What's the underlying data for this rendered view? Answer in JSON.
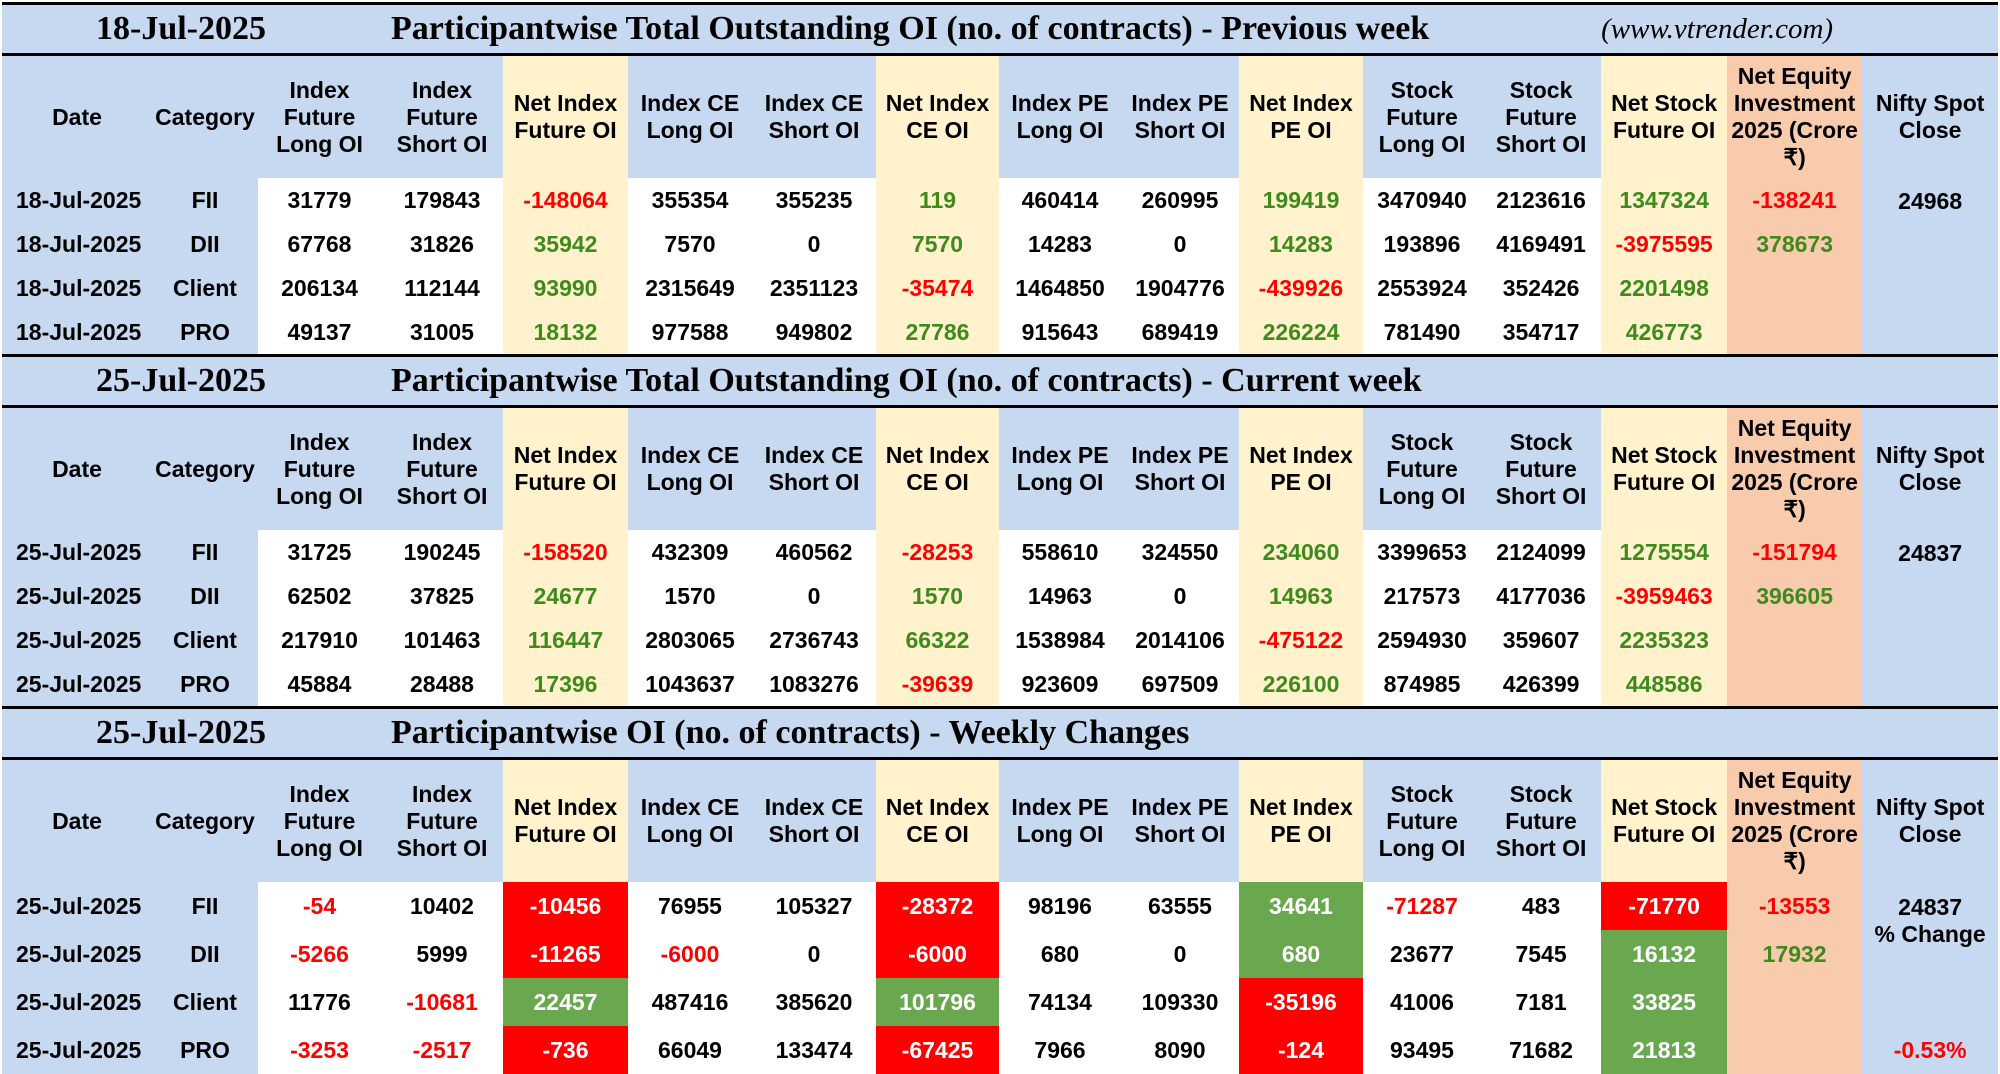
{
  "header": {
    "headers": [
      "Date",
      "Category",
      "Index Future Long OI",
      "Index Future Short OI",
      "Net Index Future OI",
      "Index CE Long OI",
      "Index CE Short OI",
      "Net Index CE OI",
      "Index PE Long OI",
      "Index PE Short OI",
      "Net Index PE OI",
      "Stock Future Long OI",
      "Stock Future Short OI",
      "Net Stock Future OI",
      "Net Equity Investment 2025 (Crore ₹)",
      "Nifty Spot Close"
    ]
  },
  "sections": [
    {
      "date": "18-Jul-2025",
      "title": "Participantwise Total Outstanding OI (no. of contracts) - Previous week",
      "url": "(www.vtrender.com)",
      "nifty": "24968",
      "rows": [
        {
          "date": "18-Jul-2025",
          "cat": "FII",
          "ifl": "31779",
          "ifs": "179843",
          "nif": "-148064",
          "cel": "355354",
          "ces": "355235",
          "nce": "119",
          "pel": "460414",
          "pes": "260995",
          "npe": "199419",
          "sfl": "3470940",
          "sfs": "2123616",
          "nsf": "1347324",
          "nei": "-138241"
        },
        {
          "date": "18-Jul-2025",
          "cat": "DII",
          "ifl": "67768",
          "ifs": "31826",
          "nif": "35942",
          "cel": "7570",
          "ces": "0",
          "nce": "7570",
          "pel": "14283",
          "pes": "0",
          "npe": "14283",
          "sfl": "193896",
          "sfs": "4169491",
          "nsf": "-3975595",
          "nei": "378673"
        },
        {
          "date": "18-Jul-2025",
          "cat": "Client",
          "ifl": "206134",
          "ifs": "112144",
          "nif": "93990",
          "cel": "2315649",
          "ces": "2351123",
          "nce": "-35474",
          "pel": "1464850",
          "pes": "1904776",
          "npe": "-439926",
          "sfl": "2553924",
          "sfs": "352426",
          "nsf": "2201498",
          "nei": ""
        },
        {
          "date": "18-Jul-2025",
          "cat": "PRO",
          "ifl": "49137",
          "ifs": "31005",
          "nif": "18132",
          "cel": "977588",
          "ces": "949802",
          "nce": "27786",
          "pel": "915643",
          "pes": "689419",
          "npe": "226224",
          "sfl": "781490",
          "sfs": "354717",
          "nsf": "426773",
          "nei": ""
        }
      ]
    },
    {
      "date": "25-Jul-2025",
      "title": "Participantwise Total Outstanding OI (no. of contracts) - Current week",
      "url": "",
      "nifty": "24837",
      "rows": [
        {
          "date": "25-Jul-2025",
          "cat": "FII",
          "ifl": "31725",
          "ifs": "190245",
          "nif": "-158520",
          "cel": "432309",
          "ces": "460562",
          "nce": "-28253",
          "pel": "558610",
          "pes": "324550",
          "npe": "234060",
          "sfl": "3399653",
          "sfs": "2124099",
          "nsf": "1275554",
          "nei": "-151794"
        },
        {
          "date": "25-Jul-2025",
          "cat": "DII",
          "ifl": "62502",
          "ifs": "37825",
          "nif": "24677",
          "cel": "1570",
          "ces": "0",
          "nce": "1570",
          "pel": "14963",
          "pes": "0",
          "npe": "14963",
          "sfl": "217573",
          "sfs": "4177036",
          "nsf": "-3959463",
          "nei": "396605"
        },
        {
          "date": "25-Jul-2025",
          "cat": "Client",
          "ifl": "217910",
          "ifs": "101463",
          "nif": "116447",
          "cel": "2803065",
          "ces": "2736743",
          "nce": "66322",
          "pel": "1538984",
          "pes": "2014106",
          "npe": "-475122",
          "sfl": "2594930",
          "sfs": "359607",
          "nsf": "2235323",
          "nei": ""
        },
        {
          "date": "25-Jul-2025",
          "cat": "PRO",
          "ifl": "45884",
          "ifs": "28488",
          "nif": "17396",
          "cel": "1043637",
          "ces": "1083276",
          "nce": "-39639",
          "pel": "923609",
          "pes": "697509",
          "npe": "226100",
          "sfl": "874985",
          "sfs": "426399",
          "nsf": "448586",
          "nei": ""
        }
      ]
    },
    {
      "date": "25-Jul-2025",
      "title": "Participantwise OI (no. of contracts) - Weekly Changes",
      "url": "",
      "nifty": "24837",
      "pct_label": "% Change",
      "pct_value": "-0.53%",
      "rows": [
        {
          "date": "25-Jul-2025",
          "cat": "FII",
          "ifl": "-54",
          "ifs": "10402",
          "nif": "-10456",
          "cel": "76955",
          "ces": "105327",
          "nce": "-28372",
          "pel": "98196",
          "pes": "63555",
          "npe": "34641",
          "sfl": "-71287",
          "sfs": "483",
          "nsf": "-71770",
          "nei": "-13553"
        },
        {
          "date": "25-Jul-2025",
          "cat": "DII",
          "ifl": "-5266",
          "ifs": "5999",
          "nif": "-11265",
          "cel": "-6000",
          "ces": "0",
          "nce": "-6000",
          "pel": "680",
          "pes": "0",
          "npe": "680",
          "sfl": "23677",
          "sfs": "7545",
          "nsf": "16132",
          "nei": "17932"
        },
        {
          "date": "25-Jul-2025",
          "cat": "Client",
          "ifl": "11776",
          "ifs": "-10681",
          "nif": "22457",
          "cel": "487416",
          "ces": "385620",
          "nce": "101796",
          "pel": "74134",
          "pes": "109330",
          "npe": "-35196",
          "sfl": "41006",
          "sfs": "7181",
          "nsf": "33825",
          "nei": ""
        },
        {
          "date": "25-Jul-2025",
          "cat": "PRO",
          "ifl": "-3253",
          "ifs": "-2517",
          "nif": "-736",
          "cel": "66049",
          "ces": "133474",
          "nce": "-67425",
          "pel": "7966",
          "pes": "8090",
          "npe": "-124",
          "sfl": "93495",
          "sfs": "71682",
          "nsf": "21813",
          "nei": ""
        }
      ]
    }
  ],
  "colors": {
    "header_blue": "#c6d9f1",
    "highlight_yellow": "#fff2cc",
    "equity_orange": "#f8cbad",
    "negative_red": "#ff0000",
    "positive_green": "#3e8a1c",
    "cell_red": "#ff0000",
    "cell_green": "#6aa84f"
  }
}
